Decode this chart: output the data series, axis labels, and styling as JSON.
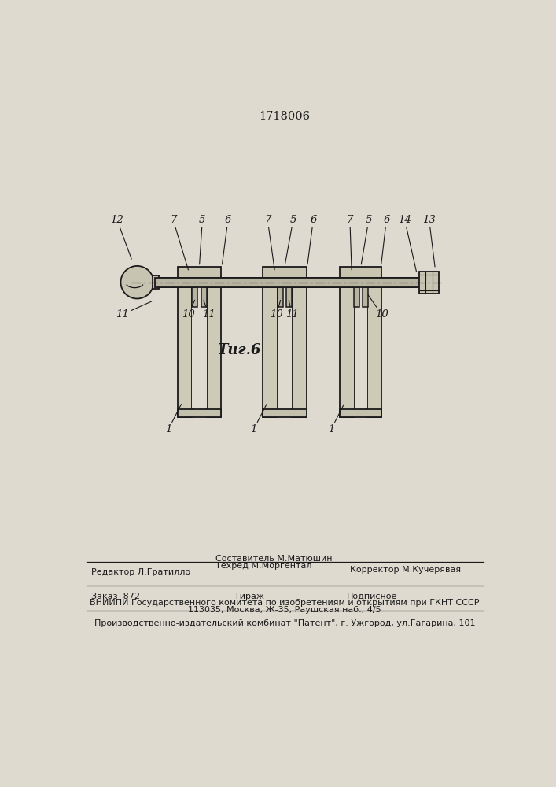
{
  "patent_number": "1718006",
  "fig_label": "Τиг.6",
  "bg": "#dedad0",
  "lc": "#1a1a1a",
  "fc_light": "#ccc8b5",
  "fc_mid": "#b8b4a0",
  "fc_dark": "#a8a490",
  "title_fs": 10.5,
  "fig_label_fs": 13,
  "ann_fs": 9.5,
  "footer_fs": 8.0,
  "footer": {
    "editor": "Редактор Л.Гратилло",
    "compiler_label": "Составитель М.Матюшин",
    "techred_label": "Техред М.Моргентал",
    "corrector": "Корректор М.Кучерявая",
    "order": "Заказ  872",
    "tirazh": "Тираж",
    "podpisnoe": "Подписное",
    "vniiipi": "ВНИИПИ Государственного комитета по изобретениям и открытиям при ГКНТ СССР",
    "address": "113035, Москва, Ж-35, Раушская наб., 4/5",
    "publisher": "Производственно-издательский комбинат \"Патент\", г. Ужгород, ул.Гагарина, 101"
  }
}
